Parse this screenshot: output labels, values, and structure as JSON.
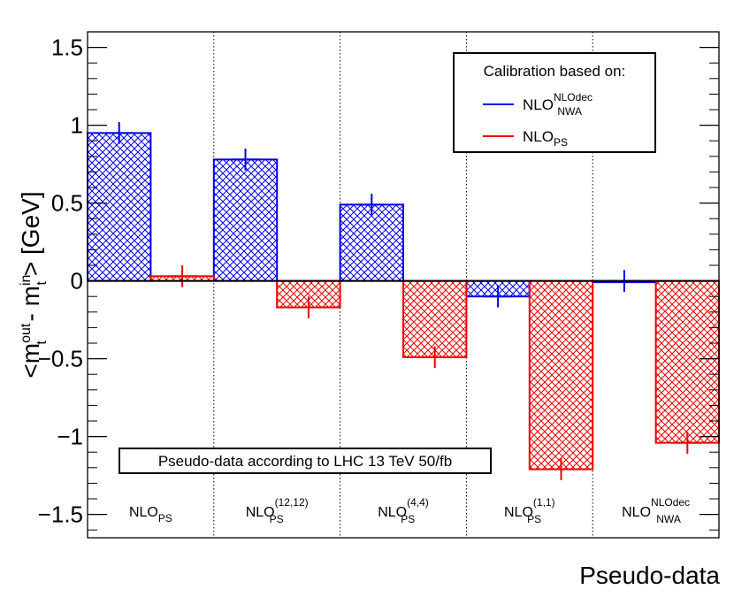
{
  "chart_data": {
    "type": "bar",
    "xlabel": "Pseudo-data",
    "ylabel": {
      "lead": "<m",
      "sup1": "out",
      "sub1": "t",
      "mid": " - m",
      "sup2": "in",
      "sub2": "t",
      "tail": "> [GeV]"
    },
    "ylim": [
      -1.65,
      1.6
    ],
    "yticks": [
      {
        "value": 1.5,
        "label": "1.5"
      },
      {
        "value": 1,
        "label": "1"
      },
      {
        "value": 0.5,
        "label": "0.5"
      },
      {
        "value": 0,
        "label": "0"
      },
      {
        "value": -0.5,
        "label": "−0.5"
      },
      {
        "value": -1,
        "label": "−1"
      },
      {
        "value": -1.5,
        "label": "−1.5"
      }
    ],
    "categories": [
      {
        "base": "NLO",
        "sub": "PS",
        "sup": ""
      },
      {
        "base": "NLO",
        "sub": "PS",
        "sup": "(12,12)"
      },
      {
        "base": "NLO",
        "sub": "PS",
        "sup": "(4,4)"
      },
      {
        "base": "NLO",
        "sub": "PS",
        "sup": "(1,1)"
      },
      {
        "base": "NLO",
        "sub": "NWA",
        "sup": "NLOdec"
      }
    ],
    "series": [
      {
        "name": "NLO_NWA^NLOdec",
        "color": "#0000ee",
        "values": [
          0.95,
          0.78,
          0.49,
          -0.1,
          0.0
        ],
        "errors": [
          0.07,
          0.07,
          0.07,
          0.07,
          0.07
        ]
      },
      {
        "name": "NLO_PS",
        "color": "#ee0000",
        "values": [
          0.03,
          -0.17,
          -0.49,
          -1.21,
          -1.04
        ],
        "errors": [
          0.07,
          0.07,
          0.07,
          0.07,
          0.07
        ]
      }
    ],
    "legend": {
      "title": "Calibration based on:",
      "entries": [
        {
          "base": "NLO",
          "sub": "NWA",
          "sup": "NLOdec",
          "color": "#0000ee"
        },
        {
          "base": "NLO",
          "sub": "PS",
          "sup": "",
          "color": "#ee0000"
        }
      ],
      "placement": "top-right"
    },
    "annotation": "Pseudo-data according to LHC 13 TeV 50/fb",
    "hatched": true,
    "grid": false
  }
}
